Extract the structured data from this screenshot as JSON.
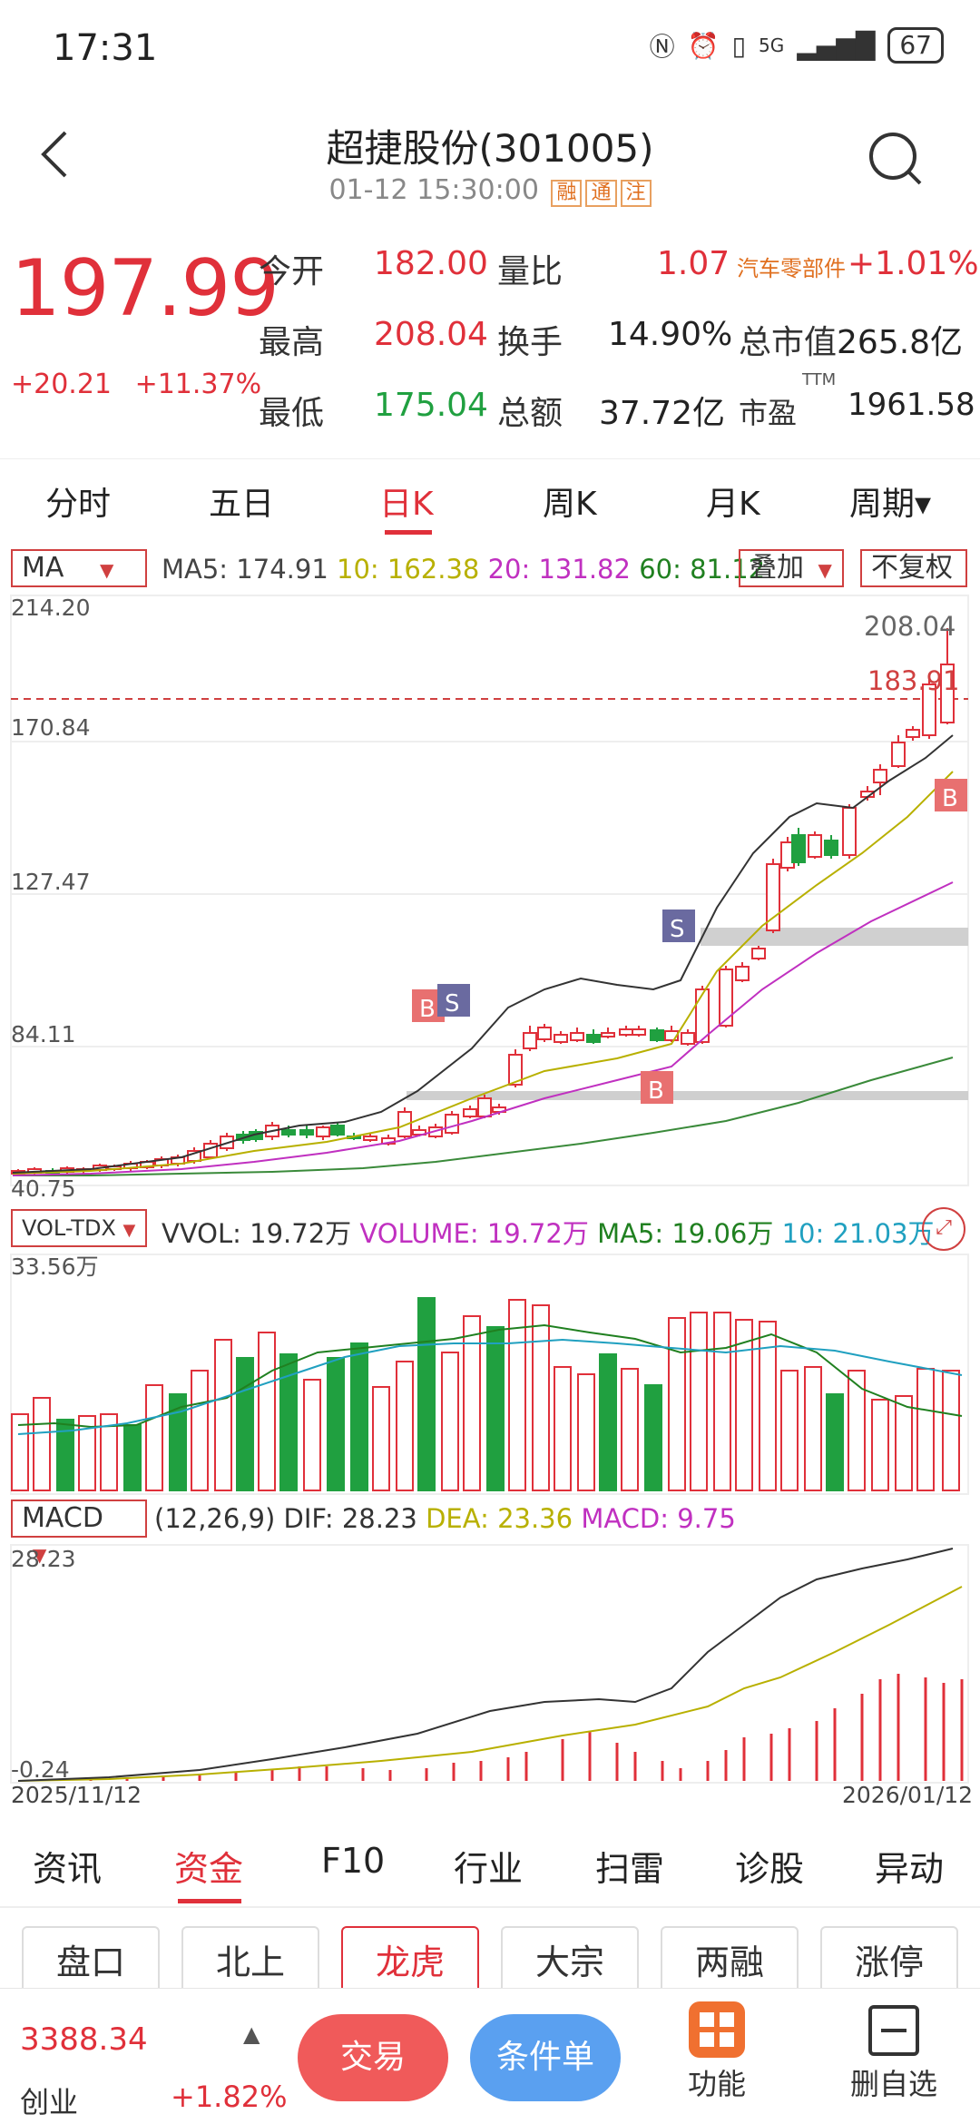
{
  "status": {
    "time": "17:31",
    "signal": "5G",
    "battery": "67"
  },
  "header": {
    "title": "超捷股份(301005)",
    "datetime": "01-12 15:30:00",
    "tags": [
      "融",
      "通",
      "注"
    ]
  },
  "quote": {
    "price": "197.99",
    "change": "+20.21",
    "change_pct": "+11.37%",
    "open_label": "今开",
    "open": "182.00",
    "ratio_label": "量比",
    "ratio": "1.07",
    "sector": "汽车零部件",
    "sector_pct": "+1.01%",
    "high_label": "最高",
    "high": "208.04",
    "turnover_label": "换手",
    "turnover": "14.90%",
    "mcap_label": "总市值",
    "mcap": "265.8亿",
    "low_label": "最低",
    "low": "175.04",
    "amount_label": "总额",
    "amount": "37.72亿",
    "pe_label": "市盈",
    "pe_sup": "TTM",
    "pe": "1961.58"
  },
  "tabs": [
    "分时",
    "五日",
    "日K",
    "周K",
    "月K",
    "周期▾"
  ],
  "kline": {
    "indicator": "MA",
    "ma5": "MA5: 174.91",
    "ma10": "10: 162.38",
    "ma20": "20: 131.82",
    "ma60": "60: 81.12",
    "overlay": "叠加",
    "adjust": "不复权",
    "y_labels": [
      "214.20",
      "170.84",
      "127.47",
      "84.11",
      "40.75"
    ],
    "high_mark": "208.04",
    "price_line": "183.91",
    "signals": {
      "b": "B",
      "s": "S"
    }
  },
  "volume": {
    "indicator": "VOL-TDX",
    "vvol": "VVOL: 19.72万",
    "volume": "VOLUME: 19.72万",
    "ma5": "MA5: 19.06万",
    "ma10": "10: 21.03万",
    "y_top": "33.56万"
  },
  "macd": {
    "indicator": "MACD",
    "params": "(12,26,9)",
    "dif": "DIF: 28.23",
    "dea": "DEA: 23.36",
    "macd": "MACD: 9.75",
    "y_top": "28.23",
    "y_bottom": "-0.24",
    "date_start": "2025/11/12",
    "date_end": "2026/01/12"
  },
  "subnav": [
    "资讯",
    "资金",
    "F10",
    "行业",
    "扫雷",
    "诊股",
    "异动"
  ],
  "chips": [
    "盘口",
    "北上",
    "龙虎",
    "大宗",
    "两融",
    "涨停"
  ],
  "bottom": {
    "index_value": "3388.34",
    "index_name": "创业",
    "index_pct": "+1.82%",
    "trade": "交易",
    "condition": "条件单",
    "func": "功能",
    "remove": "删自选"
  },
  "colors": {
    "up": "#e0303a",
    "down": "#20a040",
    "accent": "#e0303a"
  }
}
